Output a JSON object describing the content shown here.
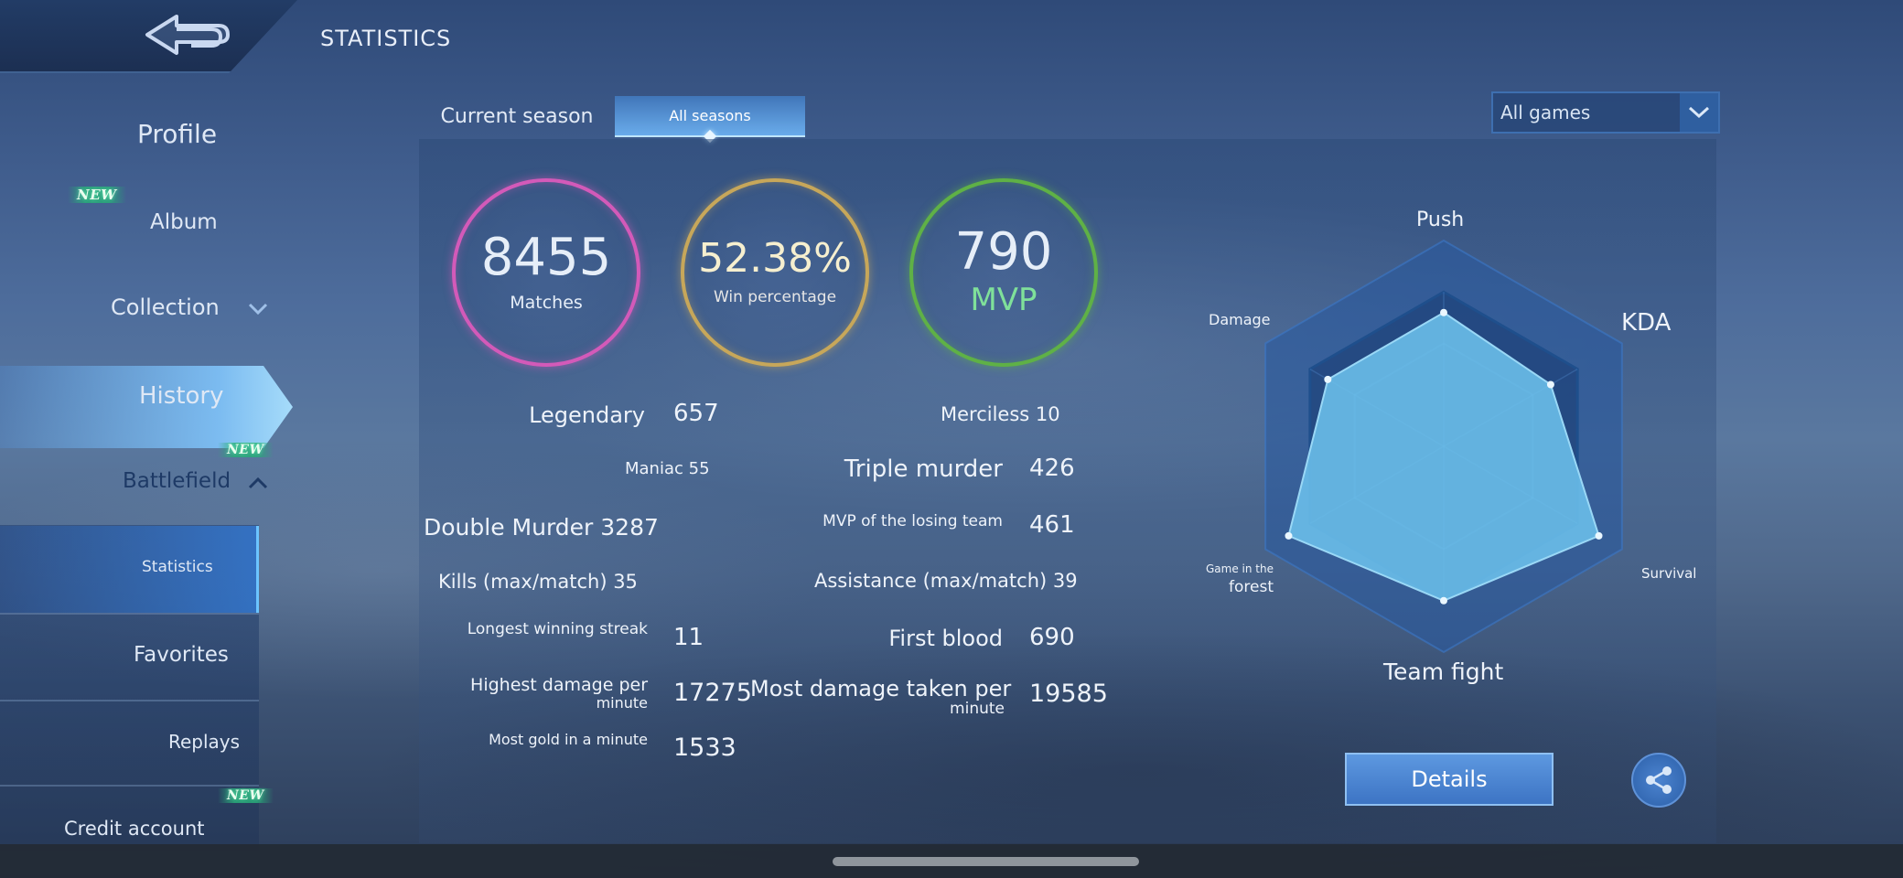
{
  "header": {
    "title": "STATISTICS"
  },
  "sidebar": {
    "profile": "Profile",
    "album_badge": "NEW",
    "album": "Album",
    "collection": "Collection",
    "history": "History",
    "battlefield": "Battlefield",
    "battlefield_badge": "NEW",
    "statistics": "Statistics",
    "favorites": "Favorites",
    "replays": "Replays",
    "credit_badge": "NEW",
    "credit_account": "Credit account"
  },
  "tabs": {
    "current_season": "Current season",
    "all_seasons": "All seasons"
  },
  "filter": {
    "selected": "All games"
  },
  "rings": {
    "matches_value": "8455",
    "matches_label": "Matches",
    "win_value": "52.38%",
    "win_label": "Win percentage",
    "mvp_value": "790",
    "mvp_label": "MVP"
  },
  "stats": {
    "legendary_label": "Legendary",
    "legendary_value": "657",
    "merciless": "Merciless 10",
    "maniac": "Maniac 55",
    "triple_label": "Triple murder",
    "triple_value": "426",
    "double_murder": "Double Murder 3287",
    "mvp_losing_label": "MVP of the losing team",
    "mvp_losing_value": "461",
    "kills": "Kills (max/match) 35",
    "assistance": "Assistance (max/match) 39",
    "streak_label": "Longest winning streak",
    "streak_value": "11",
    "first_blood_label": "First blood",
    "first_blood_value": "690",
    "highest_damage_line1": "Highest damage per",
    "highest_damage_line2": "minute",
    "highest_damage_value": "17275",
    "damage_taken_line1": "Most damage taken per",
    "damage_taken_line2": "minute",
    "damage_taken_value": "19585",
    "gold_label": "Most gold in a minute",
    "gold_value": "1533"
  },
  "radar": {
    "labels": {
      "push": "Push",
      "kda": "KDA",
      "survival": "Survival",
      "team_fight": "Team fight",
      "forest_line1": "Game in the",
      "forest_line2": "forest",
      "damage": "Damage"
    },
    "axes": [
      "Push",
      "KDA",
      "Survival",
      "Team fight",
      "Game in the forest",
      "Damage"
    ],
    "values": [
      0.65,
      0.6,
      0.87,
      0.75,
      0.87,
      0.65
    ],
    "fill_color": "#6cc0ec",
    "grid_color": "#1f4f8c"
  },
  "actions": {
    "details": "Details"
  },
  "icons": {
    "back": "back-arrow-icon",
    "chevron": "chevron-down-icon",
    "share": "share-icon"
  }
}
